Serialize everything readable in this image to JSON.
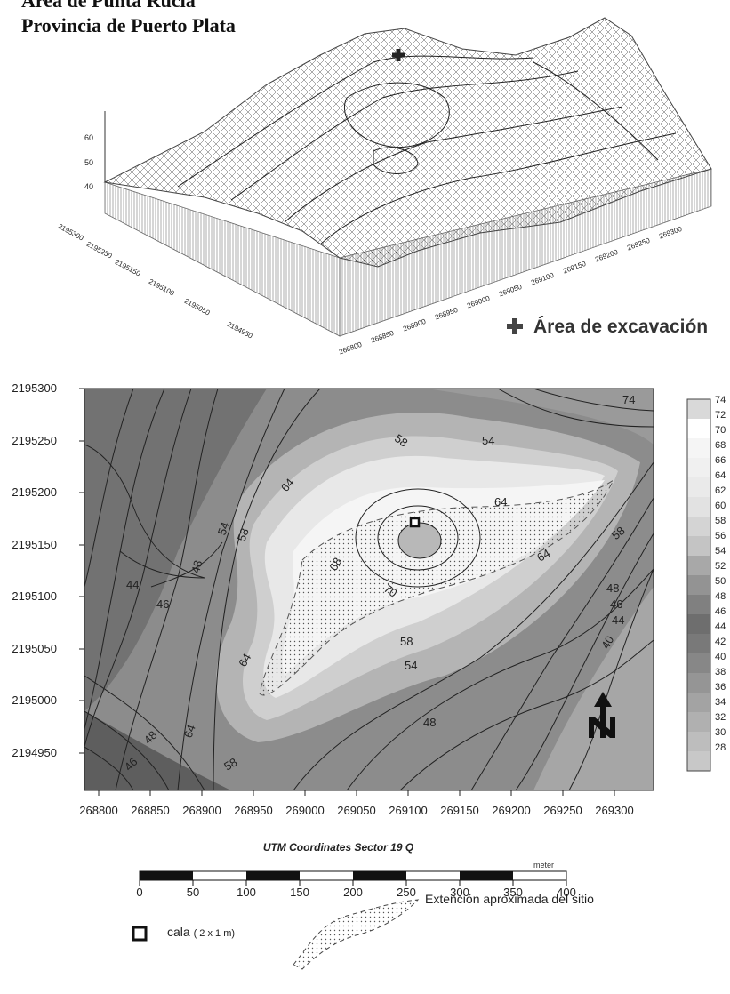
{
  "title_lines": [
    "Área de Punta Rucia",
    "Provincia de Puerto Plata"
  ],
  "surface_3d": {
    "z_ticks": [
      "60",
      "50",
      "40"
    ],
    "y_ticks": [
      "2195300",
      "2195250",
      "2195150",
      "2195100",
      "2195050",
      "2194950"
    ],
    "x_ticks": [
      "268800",
      "268850",
      "268900",
      "268950",
      "269000",
      "269050",
      "269100",
      "269150",
      "269200",
      "269250",
      "269300"
    ],
    "marker_icon": "cross-marker-icon",
    "legend_label": "Área de excavación"
  },
  "contour_map": {
    "y_ticks": [
      "2195300",
      "2195250",
      "2195200",
      "2195150",
      "2195100",
      "2195050",
      "2195000",
      "2194950"
    ],
    "x_ticks": [
      "268800",
      "268850",
      "268900",
      "268950",
      "269000",
      "269050",
      "269100",
      "269150",
      "269200",
      "269250",
      "269300"
    ],
    "axis_title": "UTM Coordinates Sector 19 Q",
    "contour_labels": [
      "74",
      "58",
      "54",
      "64",
      "64",
      "54",
      "58",
      "58",
      "64",
      "68",
      "70",
      "44",
      "46",
      "48",
      "48",
      "46",
      "44",
      "40",
      "64",
      "58",
      "54",
      "64",
      "48",
      "46",
      "58",
      "48"
    ],
    "colorbar_ticks": [
      "74",
      "72",
      "70",
      "68",
      "66",
      "64",
      "62",
      "60",
      "58",
      "56",
      "54",
      "52",
      "50",
      "48",
      "46",
      "44",
      "42",
      "40",
      "38",
      "36",
      "34",
      "32",
      "30",
      "28"
    ],
    "north_icon": "north-arrow-icon"
  },
  "scale_bar": {
    "unit": "meter",
    "ticks": [
      "0",
      "50",
      "100",
      "150",
      "200",
      "250",
      "300",
      "350",
      "400"
    ]
  },
  "map_legend": {
    "cala_icon": "square-marker-icon",
    "cala_label": "cala",
    "cala_size": "( 2 x 1 m)",
    "site_icon": "dotted-area-icon",
    "site_label": "Extención aproximada del sitio"
  },
  "colors": {
    "background": "#ffffff",
    "low_gray": "#8a8a8a",
    "high_white": "#f4f4f4"
  }
}
